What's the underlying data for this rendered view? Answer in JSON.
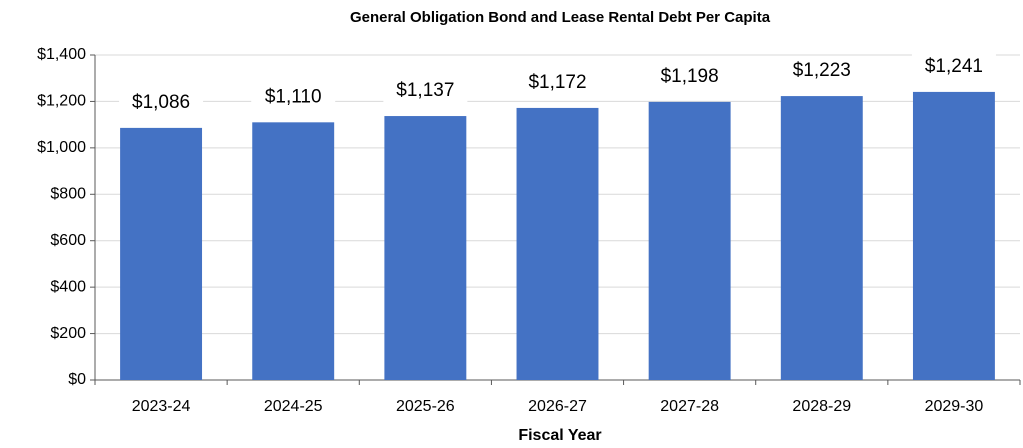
{
  "chart_data": {
    "type": "bar",
    "title": "General Obligation Bond and Lease Rental Debt Per Capita",
    "x_label": "Fiscal Year",
    "categories": [
      "2023-24",
      "2024-25",
      "2025-26",
      "2026-27",
      "2027-28",
      "2028-29",
      "2029-30"
    ],
    "values": [
      1086,
      1110,
      1137,
      1172,
      1198,
      1223,
      1241
    ],
    "value_labels": [
      "$1,086",
      "$1,110",
      "$1,137",
      "$1,172",
      "$1,198",
      "$1,223",
      "$1,241"
    ],
    "color": "#4472c4",
    "ylim": [
      0,
      1400
    ],
    "yticks": [
      {
        "value": 0,
        "label": "$0"
      },
      {
        "value": 200,
        "label": "$200"
      },
      {
        "value": 400,
        "label": "$400"
      },
      {
        "value": 600,
        "label": "$600"
      },
      {
        "value": 800,
        "label": "$800"
      },
      {
        "value": 1000,
        "label": "$1,000"
      },
      {
        "value": 1200,
        "label": "$1,200"
      },
      {
        "value": 1400,
        "label": "$1,400"
      }
    ],
    "grid": true
  }
}
